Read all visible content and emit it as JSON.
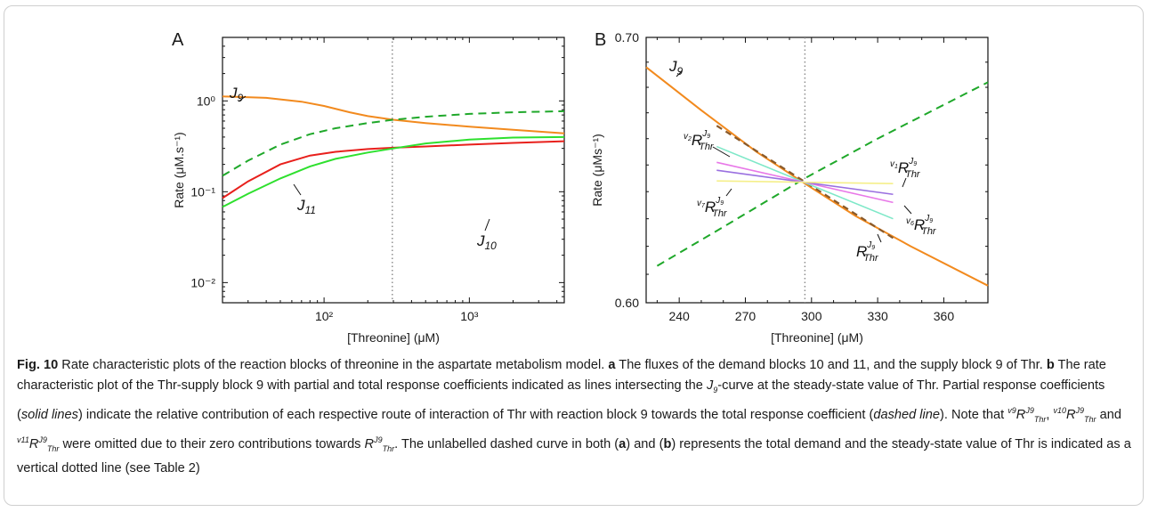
{
  "figure": {
    "panel_a_letter": "A",
    "panel_b_letter": "B",
    "caption": {
      "label": "Fig. 10",
      "text_1": " Rate characteristic plots of the reaction blocks of threonine in the aspartate metabolism model. ",
      "bold_a": "a",
      "text_2": " The fluxes of the demand blocks 10 and 11, and the supply block 9 of Thr. ",
      "bold_b": "b",
      "text_3": " The rate characteristic plot of the Thr-supply block 9 with partial and total response coefficients indicated as lines intersecting the ",
      "j9_j": "J",
      "j9_sub": "9",
      "text_4": "-curve at the steady-state value of Thr. Partial response coefficients (",
      "solid_lines": "solid lines",
      "text_5": ") indicate the relative contribution of each respective route of interaction of Thr with reaction block 9 towards the total response coefficient (",
      "dashed_line": "dashed line",
      "text_6": "). Note that ",
      "v9": "v9",
      "v10": "v10",
      "v11": "v11",
      "R": "R",
      "J9": "J9",
      "Thr": "Thr",
      "and": " and ",
      "comma": ", ",
      "text_7": " were omitted due to their zero contributions towards ",
      "text_8": ". The unlabelled dashed curve in both (",
      "paren_a": "a",
      "text_9": ") and (",
      "paren_b": "b",
      "text_10": ") represents the total demand and the steady-state value of Thr is indicated as a vertical dotted line (see Table 2)"
    }
  },
  "chart_data": [
    {
      "type": "line",
      "panel": "A",
      "xlabel": "[Threonine] (μM)",
      "ylabel": "Rate (μM.s⁻¹)",
      "x_scale": "log",
      "y_scale": "log",
      "xlim": [
        20,
        4500
      ],
      "ylim": [
        0.006,
        5
      ],
      "x_ticks": [
        {
          "value": 100,
          "label": "10²"
        },
        {
          "value": 1000,
          "label": "10³"
        }
      ],
      "y_ticks": [
        {
          "value": 0.01,
          "label": "10⁻²"
        },
        {
          "value": 0.1,
          "label": "10⁻¹"
        },
        {
          "value": 1,
          "label": "10⁰"
        }
      ],
      "steady_state_x": 295,
      "series": [
        {
          "name": "J9",
          "color": "#f28a1e",
          "dash": false,
          "x": [
            20,
            40,
            70,
            100,
            150,
            200,
            300,
            500,
            1000,
            2000,
            4500
          ],
          "y": [
            1.12,
            1.08,
            0.98,
            0.88,
            0.75,
            0.68,
            0.62,
            0.57,
            0.52,
            0.48,
            0.44
          ]
        },
        {
          "name": "J10",
          "color": "#e8201c",
          "dash": false,
          "x": [
            20,
            30,
            50,
            80,
            120,
            200,
            300,
            500,
            1000,
            2000,
            4500
          ],
          "y": [
            0.085,
            0.13,
            0.2,
            0.25,
            0.275,
            0.295,
            0.305,
            0.315,
            0.33,
            0.345,
            0.36
          ]
        },
        {
          "name": "J11",
          "color": "#2ee02e",
          "dash": false,
          "x": [
            20,
            30,
            50,
            80,
            120,
            200,
            300,
            500,
            1000,
            2000,
            4500
          ],
          "y": [
            0.068,
            0.095,
            0.14,
            0.19,
            0.23,
            0.27,
            0.3,
            0.34,
            0.375,
            0.395,
            0.4
          ]
        },
        {
          "name": "",
          "color": "#1fa82a",
          "dash": true,
          "x": [
            20,
            30,
            50,
            80,
            120,
            200,
            300,
            500,
            1000,
            2000,
            4500
          ],
          "y": [
            0.15,
            0.22,
            0.33,
            0.43,
            0.5,
            0.57,
            0.62,
            0.67,
            0.72,
            0.75,
            0.77
          ]
        }
      ],
      "labels": [
        {
          "series": "J9",
          "main": "J",
          "sub": "9"
        },
        {
          "series": "J10",
          "main": "J",
          "sub": "10"
        },
        {
          "series": "J11",
          "main": "J",
          "sub": "11"
        }
      ]
    },
    {
      "type": "line",
      "panel": "B",
      "xlabel": "[Threonine] (μM)",
      "ylabel": "Rate (μMs⁻¹)",
      "x_scale": "linear",
      "y_scale": "log",
      "xlim": [
        225,
        380
      ],
      "ylim": [
        0.6,
        0.7
      ],
      "x_ticks": [
        240,
        270,
        300,
        330,
        360
      ],
      "y_ticks": [
        {
          "value": 0.6,
          "label": "0.60"
        },
        {
          "value": 0.7,
          "label": "0.70"
        }
      ],
      "steady_state_x": 297,
      "series": [
        {
          "name": "J9",
          "color": "#f28a1e",
          "dash": false,
          "x": [
            225,
            250,
            275,
            297,
            320,
            345,
            380
          ],
          "y": [
            0.688,
            0.671,
            0.655,
            0.643,
            0.631,
            0.62,
            0.606
          ]
        },
        {
          "name": "",
          "color": "#1fa82a",
          "dash": true,
          "x": [
            230,
            260,
            297,
            330,
            380
          ],
          "y": [
            0.613,
            0.627,
            0.645,
            0.66,
            0.682
          ]
        }
      ],
      "coefficients": [
        {
          "name": "RJ9Thr",
          "prefix": "",
          "color": "#8a5a2a",
          "dash": true,
          "x": [
            257,
            337
          ],
          "y": [
            0.665,
            0.623
          ]
        },
        {
          "name": "v2RJ9Thr",
          "prefix": "v2",
          "color": "#7ee8c8",
          "dash": false,
          "x": [
            257,
            337
          ],
          "y": [
            0.657,
            0.63
          ]
        },
        {
          "name": "v6RJ9Thr",
          "prefix": "v6",
          "color": "#e878e8",
          "dash": false,
          "x": [
            257,
            337
          ],
          "y": [
            0.651,
            0.636
          ]
        },
        {
          "name": "v7RJ9Thr",
          "prefix": "v7",
          "color": "#9a70e0",
          "dash": false,
          "x": [
            257,
            337
          ],
          "y": [
            0.648,
            0.639
          ]
        },
        {
          "name": "v1RJ9Thr",
          "prefix": "v1",
          "color": "#f5ef8a",
          "dash": false,
          "x": [
            257,
            337
          ],
          "y": [
            0.644,
            0.643
          ]
        }
      ],
      "labels": [
        {
          "series": "J9",
          "main": "J",
          "sub": "9"
        },
        {
          "series": "v2RJ9Thr",
          "pre": "v2",
          "main": "R",
          "sup": "J9",
          "sub": "Thr"
        },
        {
          "series": "v7RJ9Thr",
          "pre": "v7",
          "main": "R",
          "sup": "J9",
          "sub": "Thr"
        },
        {
          "series": "v1RJ9Thr",
          "pre": "v1",
          "main": "R",
          "sup": "J9",
          "sub": "Thr"
        },
        {
          "series": "v6RJ9Thr",
          "pre": "v6",
          "main": "R",
          "sup": "J9",
          "sub": "Thr"
        },
        {
          "series": "RJ9Thr",
          "pre": "",
          "main": "R",
          "sup": "J9",
          "sub": "Thr"
        }
      ]
    }
  ]
}
